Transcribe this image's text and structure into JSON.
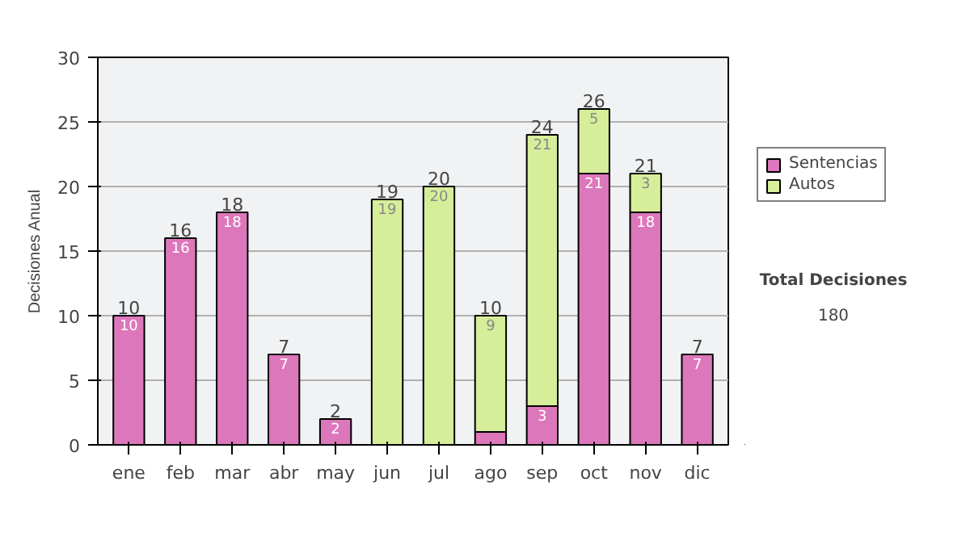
{
  "chart_data": {
    "type": "bar",
    "stacked": true,
    "ylabel": "Decisiones Anual",
    "categories": [
      "ene",
      "feb",
      "mar",
      "abr",
      "may",
      "jun",
      "jul",
      "ago",
      "sep",
      "oct",
      "nov",
      "dic"
    ],
    "series": [
      {
        "name": "Sentencias",
        "color": "#dd77bb",
        "values": [
          10,
          16,
          18,
          7,
          2,
          0,
          0,
          1,
          3,
          21,
          18,
          7
        ],
        "value_labels": [
          "10",
          "16",
          "18",
          "7",
          "2",
          null,
          null,
          null,
          "3",
          "21",
          "18",
          "7"
        ]
      },
      {
        "name": "Autos",
        "color": "#d6ee99",
        "values": [
          0,
          0,
          0,
          0,
          0,
          19,
          20,
          9,
          21,
          5,
          3,
          0
        ],
        "value_labels": [
          null,
          null,
          null,
          null,
          null,
          "19",
          "20",
          "9",
          "21",
          "5",
          "3",
          null
        ]
      }
    ],
    "totals": [
      "10",
      "16",
      "18",
      "7",
      "2",
      "19",
      "20",
      "10",
      "24",
      "26",
      "21",
      "7"
    ],
    "ylim": [
      0,
      30
    ],
    "yticks": [
      0,
      5,
      10,
      15,
      20,
      25,
      30
    ],
    "grid": "y",
    "legend": "right",
    "annotations": [
      "Total Decisiones",
      "180"
    ]
  }
}
